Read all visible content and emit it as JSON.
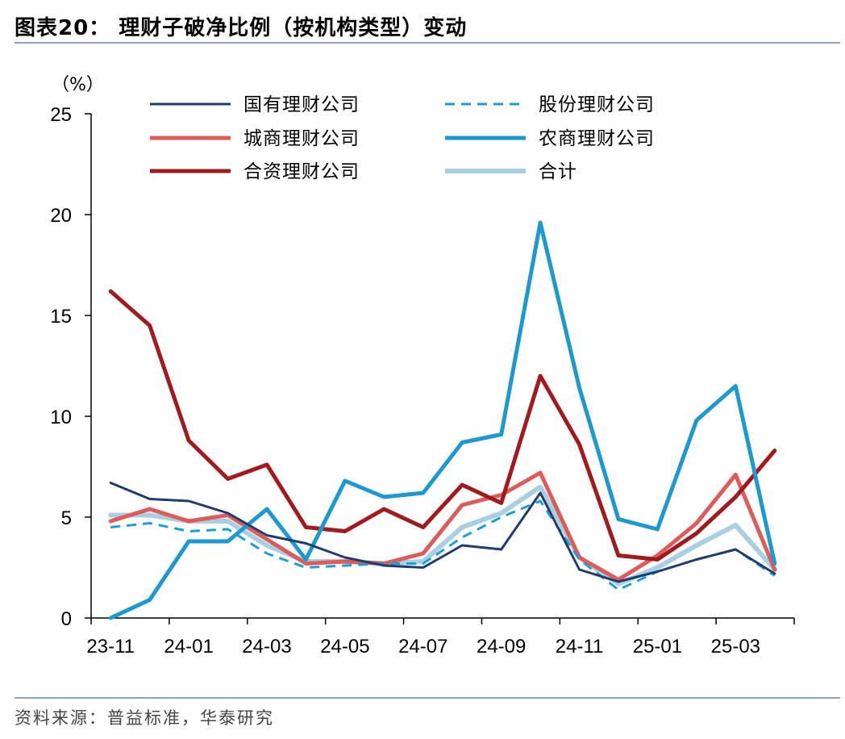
{
  "title": "图表20： 理财子破净比例（按机构类型）变动",
  "source": "资料来源：普益标准，华泰研究",
  "chart_data": {
    "type": "line",
    "ylabel": "（%）",
    "ylim": [
      0,
      25
    ],
    "yticks": [
      0,
      5,
      10,
      15,
      20,
      25
    ],
    "x": [
      "23-11",
      "23-12",
      "24-01",
      "24-02",
      "24-03",
      "24-04",
      "24-05",
      "24-06",
      "24-07",
      "24-08",
      "24-09",
      "24-10",
      "24-11",
      "24-12",
      "25-01",
      "25-02",
      "25-03",
      "25-04"
    ],
    "xtick_labels": [
      "23-11",
      "24-01",
      "24-03",
      "24-05",
      "24-07",
      "24-09",
      "24-11",
      "25-01",
      "25-03"
    ],
    "legend_placement": "top",
    "series": [
      {
        "name": "国有理财公司",
        "color": "#1f3c6e",
        "dash": false,
        "width": 3,
        "values": [
          6.7,
          5.9,
          5.8,
          5.2,
          4.1,
          3.7,
          3.0,
          2.6,
          2.5,
          3.6,
          3.4,
          6.2,
          2.4,
          1.8,
          2.3,
          2.9,
          3.4,
          2.2
        ]
      },
      {
        "name": "股份理财公司",
        "color": "#1aa0d8",
        "dash": true,
        "width": 3,
        "values": [
          4.5,
          4.7,
          4.3,
          4.4,
          3.2,
          2.5,
          2.6,
          2.7,
          2.7,
          4.0,
          5.0,
          5.8,
          2.9,
          1.4,
          2.3,
          2.9,
          3.4,
          2.1
        ]
      },
      {
        "name": "城商理财公司",
        "color": "#e05a5a",
        "dash": false,
        "width": 5,
        "values": [
          4.8,
          5.4,
          4.8,
          5.1,
          3.9,
          2.7,
          2.8,
          2.7,
          3.2,
          5.6,
          6.1,
          7.2,
          3.0,
          1.9,
          3.1,
          4.7,
          7.1,
          2.4
        ]
      },
      {
        "name": "农商理财公司",
        "color": "#1a9ad0",
        "dash": false,
        "width": 5,
        "values": [
          0.0,
          0.9,
          3.8,
          3.8,
          5.4,
          2.9,
          6.8,
          6.0,
          6.2,
          8.7,
          9.1,
          19.6,
          11.4,
          4.9,
          4.4,
          9.8,
          11.5,
          2.7
        ]
      },
      {
        "name": "合资理财公司",
        "color": "#a21a1d",
        "dash": false,
        "width": 5,
        "values": [
          16.2,
          14.5,
          8.8,
          6.9,
          7.6,
          4.5,
          4.3,
          5.4,
          4.5,
          6.6,
          5.7,
          12.0,
          8.6,
          3.1,
          2.9,
          4.2,
          6.0,
          8.3
        ]
      },
      {
        "name": "合计",
        "color": "#a9d0e2",
        "dash": false,
        "width": 6,
        "values": [
          5.1,
          5.1,
          4.8,
          4.8,
          3.6,
          2.8,
          2.8,
          2.7,
          2.8,
          4.5,
          5.2,
          6.5,
          3.0,
          1.7,
          2.5,
          3.6,
          4.6,
          2.4
        ]
      }
    ]
  }
}
